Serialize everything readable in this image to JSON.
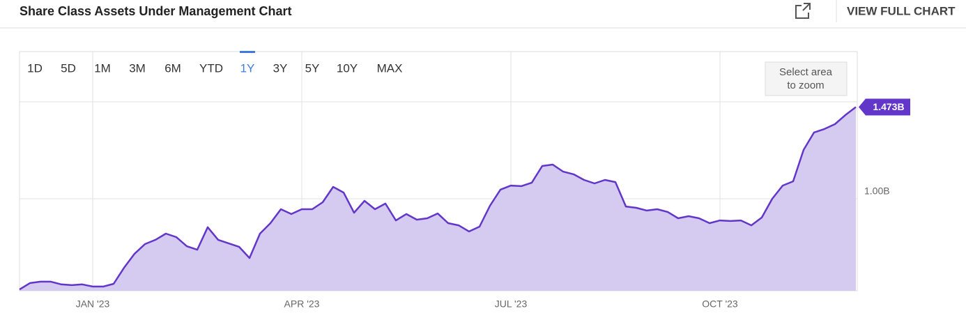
{
  "header": {
    "title": "Share Class Assets Under Management Chart",
    "link": "VIEW FULL CHART"
  },
  "ranges": [
    "1D",
    "5D",
    "1M",
    "3M",
    "6M",
    "YTD",
    "1Y",
    "3Y",
    "5Y",
    "10Y",
    "MAX"
  ],
  "selected_range": 6,
  "zoom_hint": [
    "Select area",
    "to zoom"
  ],
  "chart_data": {
    "type": "area",
    "color": "#6236c9",
    "fill": "#d5caef",
    "categories": [
      null,
      null,
      null,
      null,
      null,
      null,
      null,
      "JAN '23",
      null,
      null,
      null,
      null,
      null,
      null,
      null,
      null,
      null,
      null,
      null,
      null,
      null,
      null,
      null,
      null,
      null,
      null,
      null,
      "APR '23",
      null,
      null,
      null,
      null,
      null,
      null,
      null,
      null,
      null,
      null,
      null,
      null,
      null,
      null,
      null,
      null,
      null,
      null,
      null,
      "JUL '23",
      null,
      null,
      null,
      null,
      null,
      null,
      null,
      null,
      null,
      null,
      null,
      null,
      null,
      null,
      null,
      null,
      null,
      null,
      null,
      "OCT '23",
      null,
      null,
      null,
      null,
      null,
      null,
      null,
      null,
      null,
      null,
      null,
      null,
      null
    ],
    "values": [
      0.532,
      0.565,
      0.572,
      0.572,
      0.558,
      0.554,
      0.558,
      0.547,
      0.547,
      0.561,
      0.644,
      0.716,
      0.766,
      0.788,
      0.82,
      0.802,
      0.755,
      0.737,
      0.853,
      0.788,
      0.77,
      0.752,
      0.694,
      0.82,
      0.874,
      0.946,
      0.921,
      0.946,
      0.946,
      0.982,
      1.061,
      1.032,
      0.928,
      0.989,
      0.946,
      0.975,
      0.888,
      0.921,
      0.892,
      0.899,
      0.924,
      0.874,
      0.863,
      0.831,
      0.856,
      0.964,
      1.047,
      1.068,
      1.065,
      1.083,
      1.169,
      1.176,
      1.14,
      1.126,
      1.097,
      1.079,
      1.097,
      1.086,
      0.96,
      0.953,
      0.939,
      0.946,
      0.932,
      0.899,
      0.91,
      0.899,
      0.874,
      0.888,
      0.885,
      0.888,
      0.863,
      0.903,
      1.0,
      1.068,
      1.09,
      1.252,
      1.342,
      1.36,
      1.385,
      1.432,
      1.473
    ],
    "value_labels": [
      null,
      null,
      null,
      null,
      null,
      null,
      null,
      null,
      null,
      null,
      null,
      null,
      null,
      null,
      null,
      null,
      null,
      null,
      null,
      null,
      null,
      null,
      null,
      null,
      null,
      null,
      null,
      null,
      null,
      null,
      null,
      null,
      null,
      null,
      null,
      null,
      null,
      null,
      null,
      null,
      null,
      null,
      null,
      null,
      null,
      null,
      null,
      null,
      null,
      null,
      null,
      null,
      null,
      null,
      null,
      null,
      null,
      null,
      null,
      null,
      null,
      null,
      null,
      null,
      null,
      null,
      null,
      null,
      null,
      null,
      null,
      null,
      null,
      null,
      null,
      null,
      null,
      null,
      null,
      null,
      "1.473B"
    ],
    "ylim": [
      0.525,
      1.759
    ],
    "yticks": [
      {
        "value": 1,
        "label": "1.00B"
      }
    ],
    "grid_lines": [
      1.5
    ],
    "grid": true
  }
}
